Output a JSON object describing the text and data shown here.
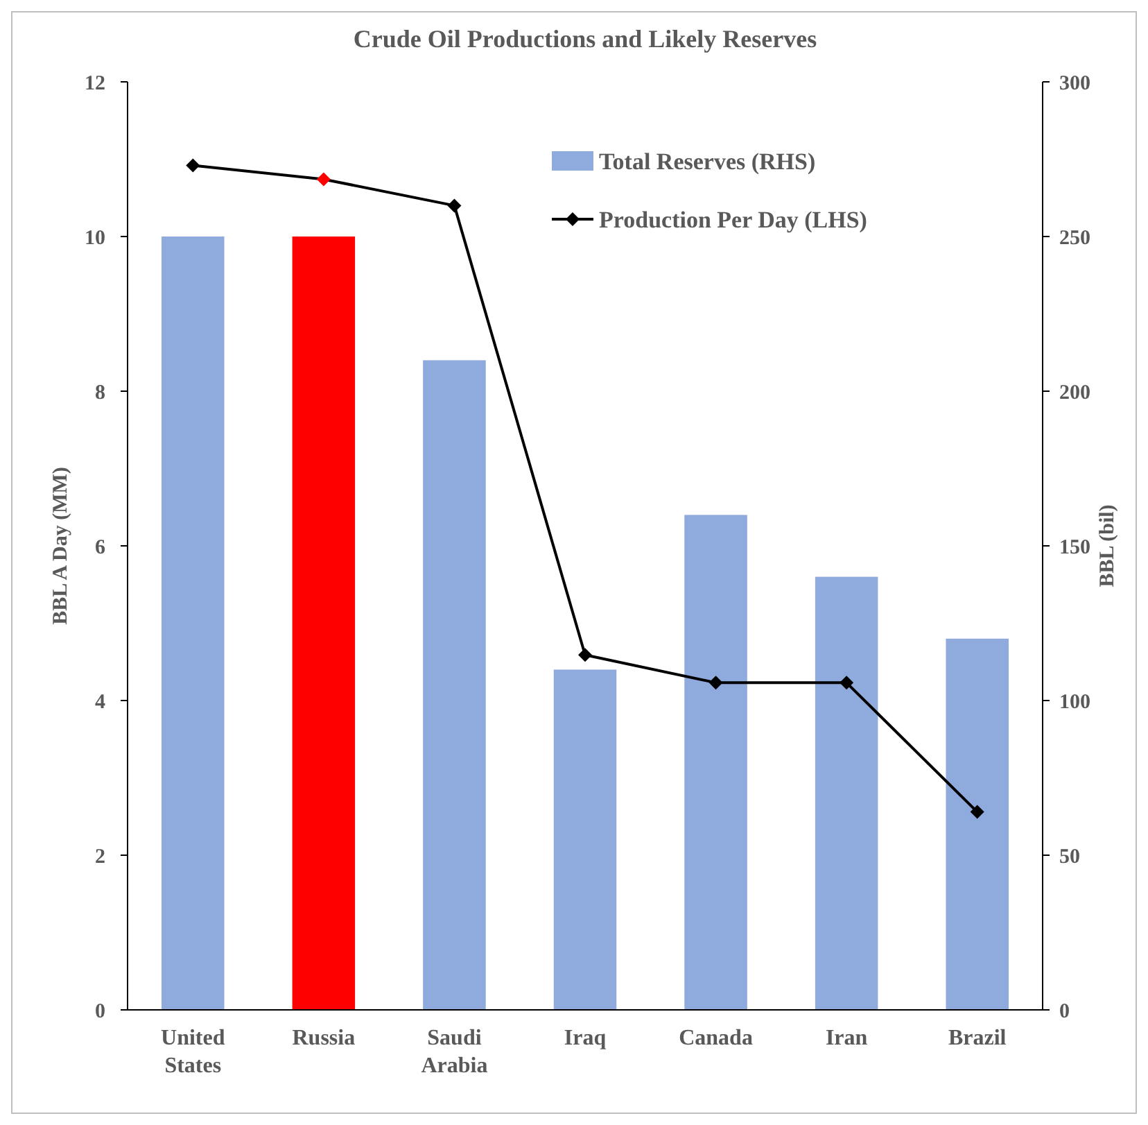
{
  "chart_data": {
    "type": "bar",
    "title": "Crude Oil Productions and Likely Reserves",
    "ylabel": "BBL A Day (MM)",
    "y2label": "BBL (bil)",
    "categories": [
      "United\nStates",
      "Russia",
      "Saudi\nArabia",
      "Iraq",
      "Canada",
      "Iran",
      "Brazil"
    ],
    "series": [
      {
        "name": "Total Reserves (RHS)",
        "axis": "y2",
        "color": "#8faadc",
        "colors": [
          "#8faadc",
          "#ff0000",
          "#8faadc",
          "#8faadc",
          "#8faadc",
          "#8faadc",
          "#8faadc"
        ],
        "values": [
          250,
          250,
          210,
          110,
          160,
          140,
          120
        ]
      },
      {
        "name": "Production Per Day (LHS)",
        "type": "line",
        "axis": "y",
        "color": "#000000",
        "colors": [
          "#000000",
          "#ff0000",
          "#000000",
          "#000000",
          "#000000",
          "#000000",
          "#000000"
        ],
        "marker": "diamond",
        "values": [
          10.92,
          10.74,
          10.4,
          4.59,
          4.23,
          4.23,
          2.56
        ]
      }
    ],
    "ylim": [
      0,
      12
    ],
    "yticks": [
      0,
      2,
      4,
      6,
      8,
      10,
      12
    ],
    "y2lim": [
      0,
      300
    ],
    "y2ticks": [
      0,
      50,
      100,
      150,
      200,
      250,
      300
    ],
    "grid": false,
    "legend": "top right"
  }
}
